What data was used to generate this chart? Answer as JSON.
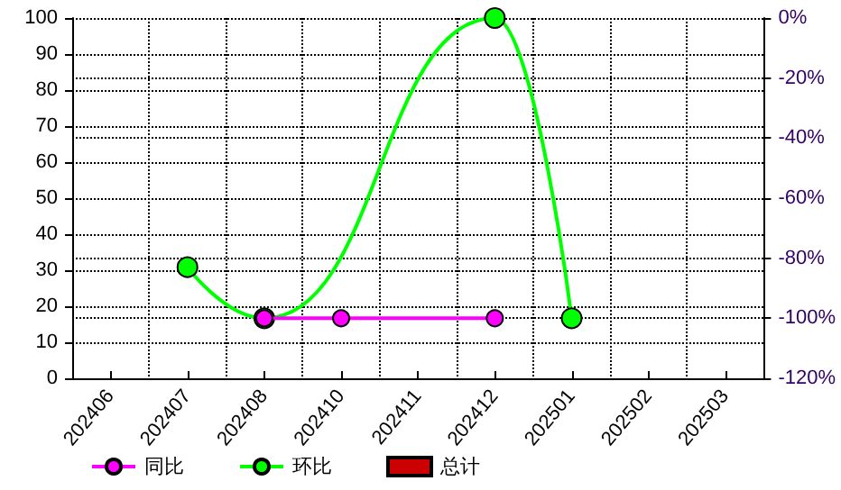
{
  "chart_data": {
    "type": "line",
    "categories": [
      "202406",
      "202407",
      "202408",
      "202410",
      "202411",
      "202412",
      "202501",
      "202502",
      "202503"
    ],
    "series": [
      {
        "name": "同比",
        "axis": "y2",
        "color": "#ff00ff",
        "values": [
          null,
          null,
          -100,
          -100,
          null,
          -100,
          null,
          null,
          null
        ]
      },
      {
        "name": "环比",
        "axis": "y2",
        "color": "#00ff00",
        "values": [
          null,
          -83,
          -100,
          null,
          null,
          0,
          -100,
          null,
          null
        ]
      },
      {
        "name": "总计",
        "type": "bar",
        "color": "#cc0000",
        "values": [
          null,
          null,
          null,
          null,
          null,
          null,
          null,
          null,
          null
        ]
      }
    ],
    "ylim": [
      0,
      100
    ],
    "yticks": [
      0,
      10,
      20,
      30,
      40,
      50,
      60,
      70,
      80,
      90,
      100
    ],
    "y2lim": [
      -120,
      0
    ],
    "y2ticks": [
      {
        "value": -120,
        "label": "-120%"
      },
      {
        "value": -100,
        "label": "-100%"
      },
      {
        "value": -80,
        "label": "-80%"
      },
      {
        "value": -60,
        "label": "-60%"
      },
      {
        "value": -40,
        "label": "-40%"
      },
      {
        "value": -20,
        "label": "-20%"
      },
      {
        "value": 0,
        "label": "0%"
      }
    ],
    "grid": true,
    "legend": "bottom left",
    "marker": "circle"
  }
}
